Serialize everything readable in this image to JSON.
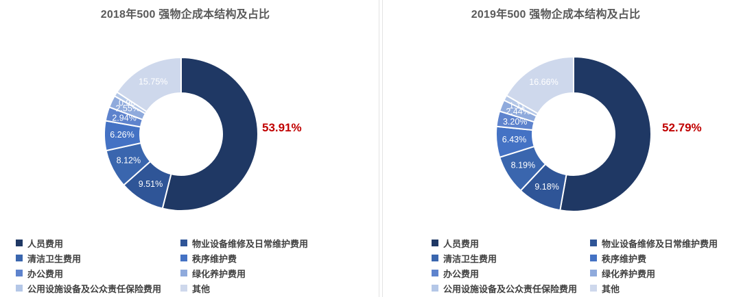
{
  "palette": [
    "#1F3864",
    "#2F5597",
    "#3A66AE",
    "#4472C4",
    "#5E83CD",
    "#8FAADC",
    "#B4C7E7",
    "#CED8EC"
  ],
  "highlight_color": "#C00000",
  "chart_data": [
    {
      "type": "pie",
      "donut": true,
      "title": "2018年500 强物企成本结构及占比",
      "categories": [
        "人员费用",
        "物业设备维修及日常维护费用",
        "清洁卫生费用",
        "秩序维护费",
        "办公费用",
        "绿化养护费用",
        "公用设施设备及公众责任保险费用",
        "其他"
      ],
      "values": [
        53.91,
        9.51,
        8.12,
        6.26,
        2.94,
        2.55,
        0.96,
        15.75
      ],
      "labels": [
        "53.91%",
        "9.51%",
        "8.12%",
        "6.26%",
        "2.94%",
        "2.55%",
        "0.96%",
        "15.75%"
      ],
      "start_angle_deg": 0,
      "direction": "clockwise",
      "legend_position": "bottom",
      "highlight": {
        "index": 0,
        "label": "53.91%"
      }
    },
    {
      "type": "pie",
      "donut": true,
      "title": "2019年500 强物企成本结构及占比",
      "categories": [
        "人员费用",
        "物业设备维修及日常维护费用",
        "清洁卫生费用",
        "秩序维护费",
        "办公费用",
        "绿化养护费用",
        "公用设施设备及公众责任保险费用",
        "其他"
      ],
      "values": [
        52.79,
        9.18,
        8.19,
        6.43,
        3.2,
        2.44,
        1.11,
        16.66
      ],
      "labels": [
        "52.79%",
        "9.18%",
        "8.19%",
        "6.43%",
        "3.20%",
        "2.44%",
        "1.11%",
        "16.66%"
      ],
      "start_angle_deg": 0,
      "direction": "clockwise",
      "legend_position": "bottom",
      "highlight": {
        "index": 0,
        "label": "52.79%"
      }
    }
  ]
}
